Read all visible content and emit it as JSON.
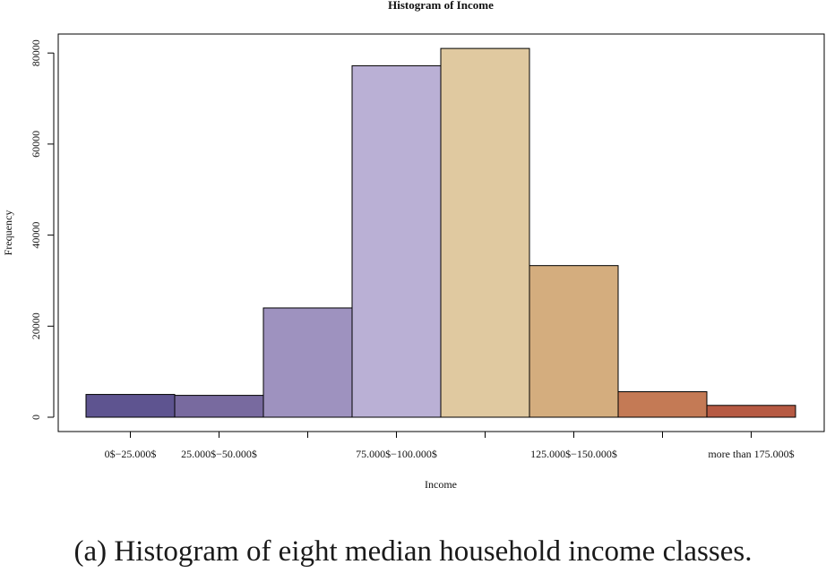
{
  "chart_data": {
    "type": "bar",
    "title": "Histogram of Income",
    "xlabel": "Income",
    "ylabel": "Frequency",
    "categories": [
      "0$−25.000$",
      "25.000$−50.000$",
      "",
      "75.000$−100.000$",
      "",
      "125.000$−150.000$",
      "",
      "more than 175.000$"
    ],
    "values": [
      5000,
      4800,
      24000,
      77200,
      81000,
      33300,
      5600,
      2600
    ],
    "colors": [
      "#5e5490",
      "#786a9f",
      "#9e92bf",
      "#bab0d5",
      "#e0c9a0",
      "#d4ad7e",
      "#c47a55",
      "#b65a43"
    ],
    "yticks": [
      "0",
      "20000",
      "40000",
      "60000",
      "80000"
    ],
    "ytick_values": [
      0,
      20000,
      40000,
      60000,
      80000
    ],
    "ylim": [
      0,
      85000
    ],
    "grid": false,
    "legend": "none"
  },
  "caption": "(a) Histogram of eight median household income classes."
}
